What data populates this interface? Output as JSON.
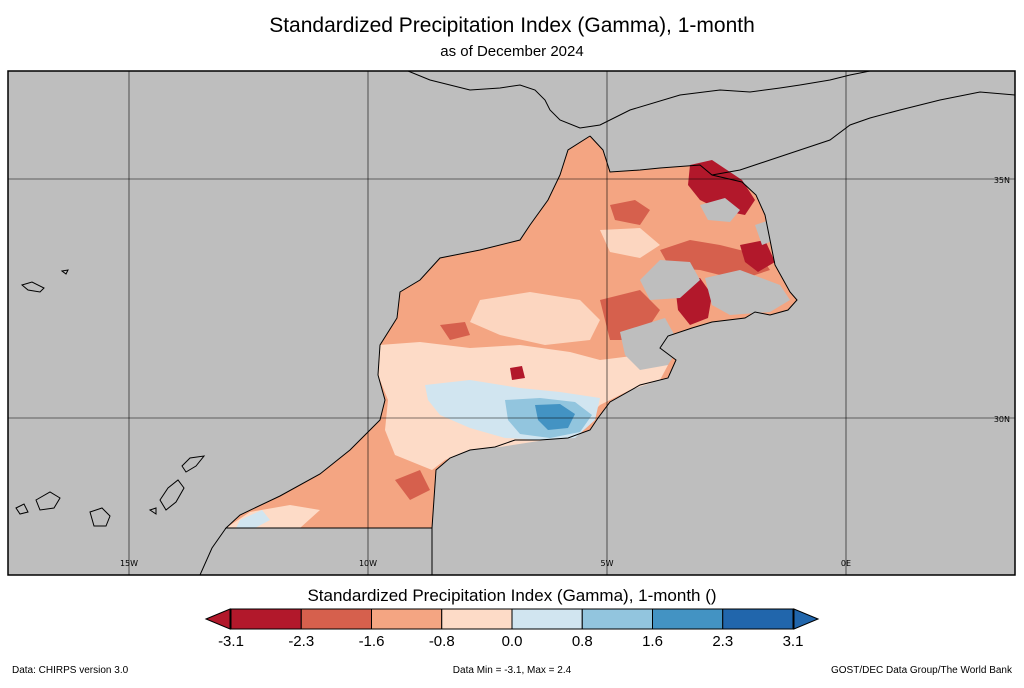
{
  "header": {
    "title": "Standardized Precipitation Index (Gamma), 1-month",
    "subtitle": "as of December 2024"
  },
  "map": {
    "background_color": "#bebebe",
    "lon_labels": [
      "15W",
      "10W",
      "5W",
      "0E"
    ],
    "lat_labels": [
      "35N",
      "30N"
    ]
  },
  "colorbar": {
    "title": "Standardized Precipitation Index (Gamma), 1-month ()",
    "ticks": [
      "-3.1",
      "-2.3",
      "-1.6",
      "-0.8",
      "0.0",
      "0.8",
      "1.6",
      "2.3",
      "3.1"
    ],
    "colors": [
      "#b2182b",
      "#d6604d",
      "#f4a582",
      "#fddbc7",
      "#d1e5f0",
      "#92c5de",
      "#4393c3",
      "#2166ac"
    ],
    "under_color": "#b2182b",
    "over_color": "#2166ac"
  },
  "footer": {
    "left": "Data: CHIRPS version 3.0",
    "center": "Data Min = -3.1, Max = 2.4",
    "right": "GOST/DEC Data Group/The World Bank"
  }
}
